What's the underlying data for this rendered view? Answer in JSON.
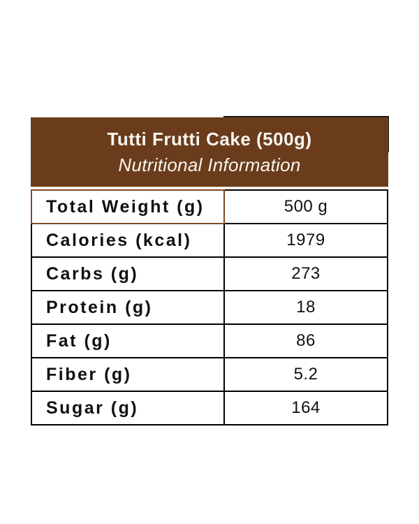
{
  "colors": {
    "page_bg": "#ffffff",
    "header_bg": "#6B3C1B",
    "header_text": "#F8F5F1",
    "grid_line": "#000000",
    "highlight_border": "#7C4A25",
    "artifact_line": "#1A1A1A",
    "text_color": "#111111"
  },
  "header": {
    "title": "Tutti Frutti Cake (500g)",
    "subtitle": "Nutritional Information"
  },
  "table": {
    "rows": [
      {
        "label": "Total Weight (g)",
        "value": "500 g"
      },
      {
        "label": "Calories (kcal)",
        "value": "1979"
      },
      {
        "label": "Carbs (g)",
        "value": "273"
      },
      {
        "label": "Protein (g)",
        "value": "18"
      },
      {
        "label": "Fat (g)",
        "value": "86"
      },
      {
        "label": "Fiber (g)",
        "value": "5.2"
      },
      {
        "label": "Sugar (g)",
        "value": "164"
      }
    ]
  }
}
